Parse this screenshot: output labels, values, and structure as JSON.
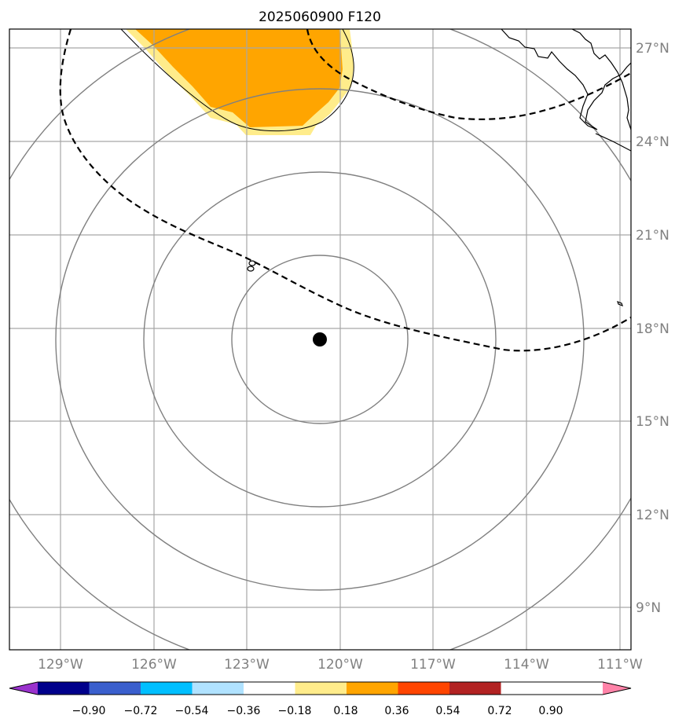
{
  "title": "2025060900 F120",
  "map": {
    "lon_range": [
      -130.7,
      -110.6
    ],
    "lat_range": [
      7.8,
      27.6
    ],
    "lon_ticks": [
      {
        "value": -129,
        "label": "129°W"
      },
      {
        "value": -126,
        "label": "126°W"
      },
      {
        "value": -123,
        "label": "123°W"
      },
      {
        "value": -120,
        "label": "120°W"
      },
      {
        "value": -117,
        "label": "117°W"
      },
      {
        "value": -114,
        "label": "114°W"
      },
      {
        "value": -111,
        "label": "111°W"
      }
    ],
    "lat_ticks": [
      {
        "value": 27,
        "label": "27°N"
      },
      {
        "value": 24,
        "label": "24°N"
      },
      {
        "value": 21,
        "label": "21°N"
      },
      {
        "value": 18,
        "label": "18°N"
      },
      {
        "value": 15,
        "label": "15°N"
      },
      {
        "value": 12,
        "label": "12°N"
      },
      {
        "value": 9,
        "label": "9°N"
      }
    ],
    "gridline_color": "#a6a6a6",
    "range_ring_color": "#808080",
    "center_marker": {
      "lon": -120.65,
      "lat": 17.6,
      "color": "#000000"
    }
  },
  "colorbar": {
    "colors": [
      "#9a32cd",
      "#00008b",
      "#3a5fcd",
      "#00bfff",
      "#b0e2ff",
      "#ffffff",
      "#ffec8b",
      "#ffa500",
      "#ff4500",
      "#b22222",
      "#ff83a8"
    ],
    "tick_labels": [
      "−0.90",
      "−0.72",
      "−0.54",
      "−0.36",
      "−0.18",
      "0.18",
      "0.36",
      "0.54",
      "0.72",
      "0.90"
    ]
  },
  "fill_colors": {
    "light": "#ffec8b",
    "dark": "#ffa500"
  }
}
